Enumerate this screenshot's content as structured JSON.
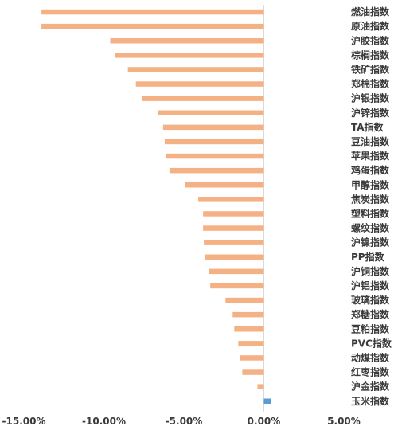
{
  "chart_data": {
    "type": "bar",
    "orientation": "horizontal",
    "categories": [
      "燃油指数",
      "原油指数",
      "沪胶指数",
      "棕榈指数",
      "铁矿指数",
      "郑棉指数",
      "沪银指数",
      "沪锌指数",
      "TA指数",
      "豆油指数",
      "苹果指数",
      "鸡蛋指数",
      "甲醇指数",
      "焦炭指数",
      "塑料指数",
      "螺纹指数",
      "沪镍指数",
      "PP指数",
      "沪铜指数",
      "沪铝指数",
      "玻璃指数",
      "郑糖指数",
      "豆粕指数",
      "PVC指数",
      "动煤指数",
      "红枣指数",
      "沪金指数",
      "玉米指数"
    ],
    "values": [
      -13.9,
      -13.9,
      -9.6,
      -9.3,
      -8.5,
      -8.0,
      -7.6,
      -6.6,
      -6.3,
      -6.2,
      -6.1,
      -5.9,
      -4.9,
      -4.1,
      -3.8,
      -3.8,
      -3.75,
      -3.7,
      -3.45,
      -3.35,
      -2.4,
      -1.95,
      -1.85,
      -1.6,
      -1.5,
      -1.35,
      -0.4,
      0.45
    ],
    "xlim": [
      -15,
      5
    ],
    "xticks": [
      -15,
      -10,
      -5,
      0,
      5
    ],
    "xtick_labels": [
      "-15.00%",
      "-10.00%",
      "-5.00%",
      "0.00%",
      "5.00%"
    ],
    "colors": {
      "negative": "#f4b183",
      "positive": "#5b9bd5",
      "axis": "#d9d9d9"
    },
    "grid": false,
    "legend": "none"
  }
}
